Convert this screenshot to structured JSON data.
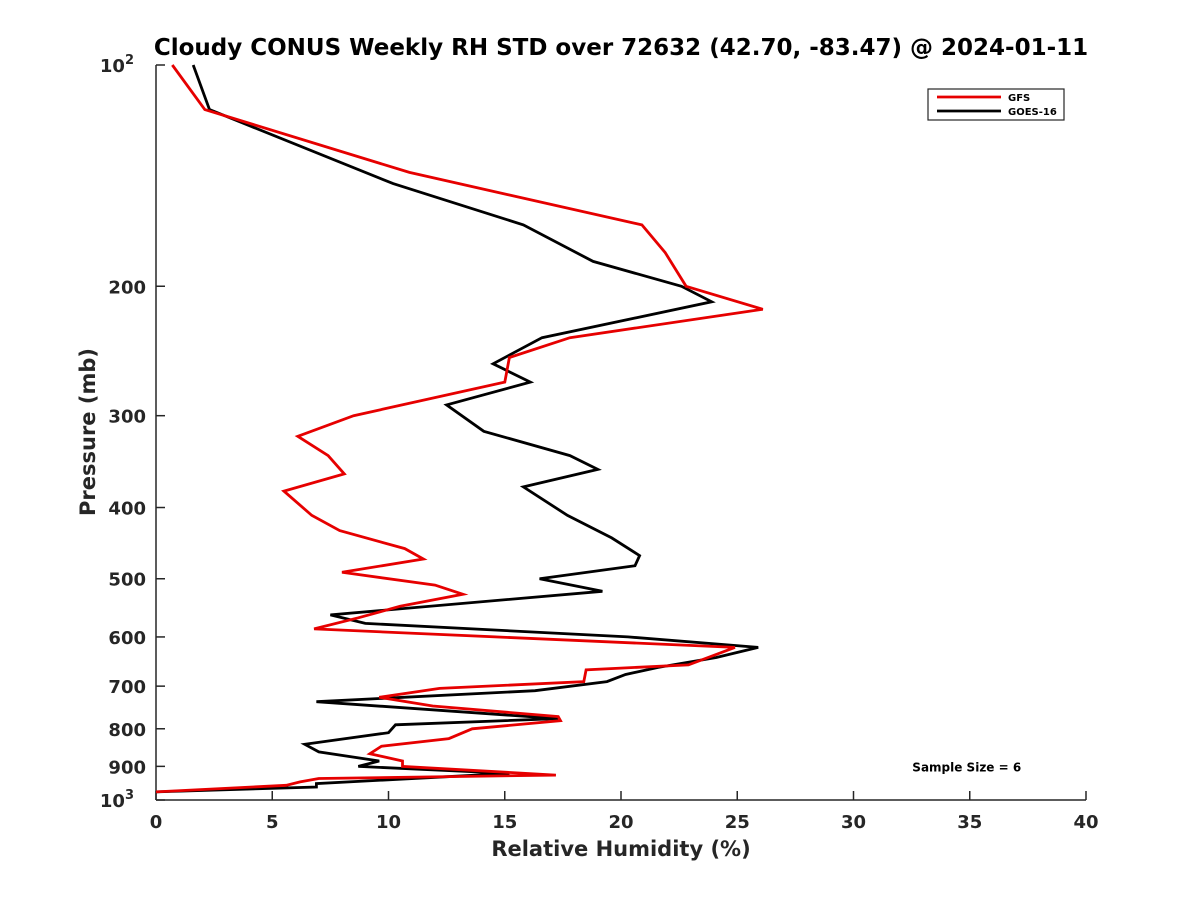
{
  "chart_data": {
    "type": "line",
    "title": "Cloudy CONUS Weekly RH STD over 72632 (42.70, -83.47) @ 2024-01-11",
    "xlabel": "Relative Humidity (%)",
    "ylabel": "Pressure (mb)",
    "xlim": [
      0,
      40
    ],
    "ylim": [
      100,
      1000
    ],
    "y_scale": "log",
    "y_reversed": true,
    "grid": false,
    "legend_position": "top-right",
    "x_ticks": [
      {
        "value": 0,
        "label": "0"
      },
      {
        "value": 5,
        "label": "5"
      },
      {
        "value": 10,
        "label": "10"
      },
      {
        "value": 15,
        "label": "15"
      },
      {
        "value": 20,
        "label": "20"
      },
      {
        "value": 25,
        "label": "25"
      },
      {
        "value": 30,
        "label": "30"
      },
      {
        "value": 35,
        "label": "35"
      },
      {
        "value": 40,
        "label": "40"
      }
    ],
    "y_ticks": [
      {
        "value": 100,
        "base": "10",
        "exp": "2"
      },
      {
        "value": 200,
        "label": "200"
      },
      {
        "value": 300,
        "label": "300"
      },
      {
        "value": 400,
        "label": "400"
      },
      {
        "value": 500,
        "label": "500"
      },
      {
        "value": 600,
        "label": "600"
      },
      {
        "value": 700,
        "label": "700"
      },
      {
        "value": 800,
        "label": "800"
      },
      {
        "value": 900,
        "label": "900"
      },
      {
        "value": 1000,
        "base": "10",
        "exp": "3"
      }
    ],
    "series": [
      {
        "name": "GFS",
        "color": "#e60000",
        "points": [
          [
            0.7,
            100
          ],
          [
            2.1,
            115
          ],
          [
            10.9,
            140
          ],
          [
            20.9,
            165
          ],
          [
            21.9,
            180
          ],
          [
            22.8,
            200
          ],
          [
            26.1,
            215
          ],
          [
            17.8,
            235
          ],
          [
            15.2,
            250
          ],
          [
            15.0,
            270
          ],
          [
            8.5,
            300
          ],
          [
            6.1,
            320
          ],
          [
            7.4,
            340
          ],
          [
            8.1,
            360
          ],
          [
            5.5,
            380
          ],
          [
            6.7,
            410
          ],
          [
            7.9,
            430
          ],
          [
            10.7,
            455
          ],
          [
            11.5,
            470
          ],
          [
            8.0,
            490
          ],
          [
            12.0,
            510
          ],
          [
            13.2,
            525
          ],
          [
            10.5,
            545
          ],
          [
            8.7,
            565
          ],
          [
            6.8,
            585
          ],
          [
            24.9,
            620
          ],
          [
            22.9,
            655
          ],
          [
            18.5,
            665
          ],
          [
            18.4,
            690
          ],
          [
            12.2,
            705
          ],
          [
            9.6,
            725
          ],
          [
            11.9,
            745
          ],
          [
            17.3,
            770
          ],
          [
            17.4,
            780
          ],
          [
            13.6,
            800
          ],
          [
            12.6,
            825
          ],
          [
            9.7,
            845
          ],
          [
            9.2,
            865
          ],
          [
            10.6,
            885
          ],
          [
            10.6,
            900
          ],
          [
            17.2,
            925
          ],
          [
            7.0,
            935
          ],
          [
            6.2,
            945
          ],
          [
            5.6,
            955
          ],
          [
            0.0,
            975
          ]
        ]
      },
      {
        "name": "GOES-16",
        "color": "#000000",
        "points": [
          [
            1.6,
            100
          ],
          [
            2.3,
            115
          ],
          [
            10.2,
            145
          ],
          [
            15.8,
            165
          ],
          [
            18.8,
            185
          ],
          [
            22.6,
            200
          ],
          [
            23.9,
            210
          ],
          [
            16.6,
            235
          ],
          [
            14.5,
            255
          ],
          [
            16.1,
            270
          ],
          [
            12.5,
            290
          ],
          [
            14.1,
            315
          ],
          [
            17.8,
            340
          ],
          [
            19.0,
            355
          ],
          [
            15.8,
            375
          ],
          [
            17.7,
            410
          ],
          [
            19.6,
            440
          ],
          [
            20.8,
            465
          ],
          [
            20.6,
            480
          ],
          [
            16.5,
            500
          ],
          [
            19.2,
            520
          ],
          [
            7.5,
            560
          ],
          [
            9.0,
            575
          ],
          [
            20.3,
            600
          ],
          [
            25.9,
            620
          ],
          [
            24.1,
            640
          ],
          [
            21.6,
            660
          ],
          [
            20.2,
            675
          ],
          [
            19.4,
            690
          ],
          [
            16.3,
            710
          ],
          [
            6.9,
            735
          ],
          [
            17.3,
            775
          ],
          [
            10.3,
            790
          ],
          [
            10.0,
            810
          ],
          [
            6.4,
            840
          ],
          [
            7.0,
            860
          ],
          [
            9.6,
            885
          ],
          [
            8.7,
            900
          ],
          [
            15.2,
            920
          ],
          [
            6.9,
            950
          ],
          [
            6.9,
            960
          ],
          [
            0.0,
            975
          ]
        ]
      }
    ],
    "annotations": [
      {
        "text": "Sample Size = 6",
        "x": 35,
        "y": 900
      }
    ]
  }
}
